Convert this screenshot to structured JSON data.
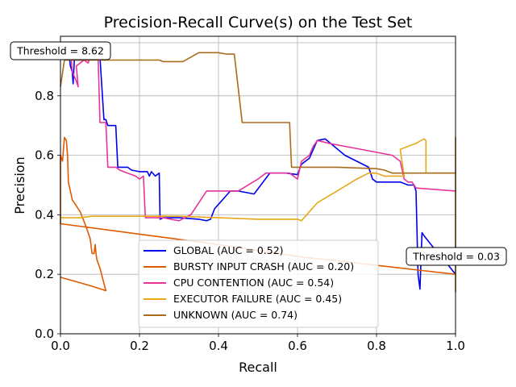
{
  "chart_data": {
    "type": "line",
    "title": "Precision-Recall Curve(s) on the Test Set",
    "xlabel": "Recall",
    "ylabel": "Precision",
    "xlim": [
      0,
      1
    ],
    "ylim": [
      0,
      1
    ],
    "xticks": [
      "0.0",
      "0.2",
      "0.4",
      "0.6",
      "0.8",
      "1.0"
    ],
    "yticks": [
      "0.0",
      "0.2",
      "0.4",
      "0.6",
      "0.8"
    ],
    "grid": true,
    "legend_position": "lower-center",
    "series": [
      {
        "name": "GLOBAL (AUC = 0.52)",
        "color": "#0000ee",
        "points": [
          [
            0.0,
            0.96
          ],
          [
            0.02,
            0.96
          ],
          [
            0.025,
            0.9
          ],
          [
            0.03,
            0.88
          ],
          [
            0.032,
            0.84
          ],
          [
            0.035,
            0.92
          ],
          [
            0.06,
            0.92
          ],
          [
            0.065,
            0.94
          ],
          [
            0.09,
            0.94
          ],
          [
            0.1,
            0.93
          ],
          [
            0.11,
            0.72
          ],
          [
            0.115,
            0.72
          ],
          [
            0.12,
            0.7
          ],
          [
            0.14,
            0.7
          ],
          [
            0.145,
            0.56
          ],
          [
            0.17,
            0.56
          ],
          [
            0.18,
            0.55
          ],
          [
            0.2,
            0.545
          ],
          [
            0.22,
            0.545
          ],
          [
            0.225,
            0.53
          ],
          [
            0.23,
            0.545
          ],
          [
            0.24,
            0.53
          ],
          [
            0.25,
            0.54
          ],
          [
            0.252,
            0.385
          ],
          [
            0.26,
            0.39
          ],
          [
            0.3,
            0.39
          ],
          [
            0.35,
            0.385
          ],
          [
            0.37,
            0.38
          ],
          [
            0.38,
            0.385
          ],
          [
            0.39,
            0.42
          ],
          [
            0.43,
            0.48
          ],
          [
            0.45,
            0.48
          ],
          [
            0.49,
            0.47
          ],
          [
            0.53,
            0.54
          ],
          [
            0.57,
            0.54
          ],
          [
            0.6,
            0.535
          ],
          [
            0.61,
            0.57
          ],
          [
            0.63,
            0.59
          ],
          [
            0.65,
            0.65
          ],
          [
            0.67,
            0.655
          ],
          [
            0.72,
            0.6
          ],
          [
            0.78,
            0.56
          ],
          [
            0.79,
            0.52
          ],
          [
            0.8,
            0.51
          ],
          [
            0.82,
            0.51
          ],
          [
            0.83,
            0.51
          ],
          [
            0.86,
            0.51
          ],
          [
            0.88,
            0.5
          ],
          [
            0.895,
            0.5
          ],
          [
            0.9,
            0.48
          ],
          [
            0.905,
            0.2
          ],
          [
            0.91,
            0.15
          ],
          [
            0.915,
            0.34
          ],
          [
            0.92,
            0.33
          ],
          [
            0.95,
            0.28
          ],
          [
            0.97,
            0.25
          ],
          [
            1.0,
            0.2
          ]
        ]
      },
      {
        "name": "BURSTY INPUT CRASH (AUC = 0.20)",
        "color": "#e05a00",
        "points": [
          [
            0.0,
            0.19
          ],
          [
            0.04,
            0.175
          ],
          [
            0.08,
            0.16
          ],
          [
            0.115,
            0.145
          ],
          [
            0.1,
            0.22
          ],
          [
            0.092,
            0.25
          ],
          [
            0.09,
            0.27
          ],
          [
            0.088,
            0.3
          ],
          [
            0.085,
            0.27
          ],
          [
            0.08,
            0.27
          ],
          [
            0.075,
            0.32
          ],
          [
            0.065,
            0.36
          ],
          [
            0.05,
            0.41
          ],
          [
            0.03,
            0.45
          ],
          [
            0.02,
            0.51
          ],
          [
            0.018,
            0.6
          ],
          [
            0.015,
            0.65
          ],
          [
            0.01,
            0.66
          ],
          [
            0.005,
            0.58
          ],
          [
            0.0,
            0.6
          ],
          [
            0.0,
            0.37
          ],
          [
            0.2,
            0.335
          ],
          [
            0.4,
            0.3
          ],
          [
            0.6,
            0.26
          ],
          [
            0.8,
            0.23
          ],
          [
            1.0,
            0.2
          ]
        ]
      },
      {
        "name": "CPU CONTENTION (AUC = 0.54)",
        "color": "#e8339a",
        "points": [
          [
            0.025,
            0.96
          ],
          [
            0.03,
            0.88
          ],
          [
            0.04,
            0.85
          ],
          [
            0.045,
            0.83
          ],
          [
            0.04,
            0.9
          ],
          [
            0.06,
            0.92
          ],
          [
            0.07,
            0.91
          ],
          [
            0.08,
            0.95
          ],
          [
            0.095,
            0.95
          ],
          [
            0.1,
            0.71
          ],
          [
            0.115,
            0.71
          ],
          [
            0.12,
            0.56
          ],
          [
            0.14,
            0.56
          ],
          [
            0.15,
            0.55
          ],
          [
            0.17,
            0.54
          ],
          [
            0.19,
            0.53
          ],
          [
            0.2,
            0.52
          ],
          [
            0.21,
            0.53
          ],
          [
            0.215,
            0.39
          ],
          [
            0.22,
            0.39
          ],
          [
            0.26,
            0.39
          ],
          [
            0.3,
            0.38
          ],
          [
            0.33,
            0.4
          ],
          [
            0.37,
            0.48
          ],
          [
            0.45,
            0.48
          ],
          [
            0.5,
            0.52
          ],
          [
            0.52,
            0.54
          ],
          [
            0.56,
            0.54
          ],
          [
            0.58,
            0.54
          ],
          [
            0.6,
            0.52
          ],
          [
            0.61,
            0.58
          ],
          [
            0.63,
            0.6
          ],
          [
            0.64,
            0.63
          ],
          [
            0.65,
            0.65
          ],
          [
            0.68,
            0.64
          ],
          [
            0.72,
            0.63
          ],
          [
            0.8,
            0.61
          ],
          [
            0.84,
            0.6
          ],
          [
            0.86,
            0.58
          ],
          [
            0.87,
            0.52
          ],
          [
            0.88,
            0.51
          ],
          [
            0.89,
            0.51
          ],
          [
            0.9,
            0.49
          ],
          [
            1.0,
            0.48
          ]
        ]
      },
      {
        "name": "EXECUTOR FAILURE (AUC = 0.45)",
        "color": "#e6a817",
        "points": [
          [
            0.0,
            0.39
          ],
          [
            0.05,
            0.39
          ],
          [
            0.08,
            0.395
          ],
          [
            0.15,
            0.395
          ],
          [
            0.3,
            0.395
          ],
          [
            0.4,
            0.39
          ],
          [
            0.5,
            0.385
          ],
          [
            0.6,
            0.385
          ],
          [
            0.61,
            0.38
          ],
          [
            0.65,
            0.44
          ],
          [
            0.7,
            0.48
          ],
          [
            0.75,
            0.52
          ],
          [
            0.78,
            0.54
          ],
          [
            0.8,
            0.54
          ],
          [
            0.82,
            0.53
          ],
          [
            0.86,
            0.53
          ],
          [
            0.87,
            0.53
          ],
          [
            0.86,
            0.62
          ],
          [
            0.9,
            0.64
          ],
          [
            0.92,
            0.655
          ],
          [
            0.925,
            0.65
          ],
          [
            0.925,
            0.54
          ],
          [
            1.0,
            0.54
          ]
        ]
      },
      {
        "name": "UNKNOWN (AUC = 0.74)",
        "color": "#a86c1c",
        "points": [
          [
            0.0,
            0.83
          ],
          [
            0.01,
            0.92
          ],
          [
            0.1,
            0.92
          ],
          [
            0.2,
            0.92
          ],
          [
            0.25,
            0.92
          ],
          [
            0.26,
            0.915
          ],
          [
            0.31,
            0.915
          ],
          [
            0.35,
            0.945
          ],
          [
            0.4,
            0.945
          ],
          [
            0.42,
            0.94
          ],
          [
            0.44,
            0.94
          ],
          [
            0.46,
            0.71
          ],
          [
            0.58,
            0.71
          ],
          [
            0.585,
            0.56
          ],
          [
            0.7,
            0.56
          ],
          [
            0.8,
            0.555
          ],
          [
            0.82,
            0.55
          ],
          [
            0.84,
            0.54
          ],
          [
            0.92,
            0.54
          ],
          [
            1.0,
            0.54
          ],
          [
            1.0,
            0.66
          ],
          [
            1.0,
            0.14
          ]
        ]
      }
    ],
    "annotations": [
      {
        "text": "Threshold = 8.62",
        "x": 0.0,
        "y": 1.0
      },
      {
        "text": "Threshold = 0.03",
        "x": 1.0,
        "y": 0.27
      }
    ]
  }
}
